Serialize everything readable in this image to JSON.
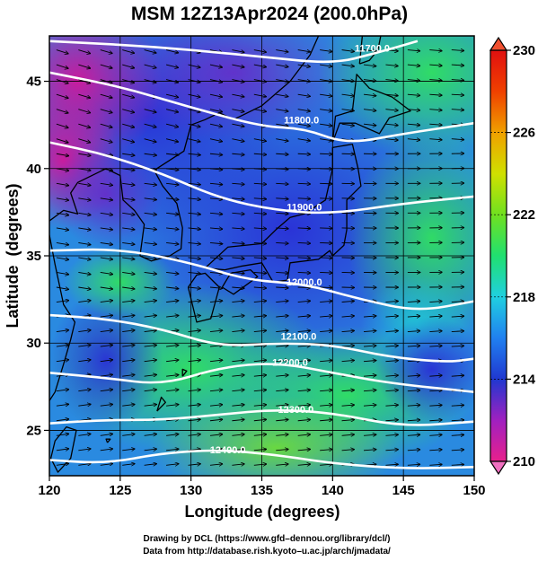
{
  "title": "MSM 12Z13Apr2024 (200.0hPa)",
  "footer": {
    "line1": "Drawing by DCL (https://www.gfd–dennou.org/library/dcl/)",
    "line2": "Data from http://database.rish.kyoto–u.ac.jp/arch/jmadata/"
  },
  "chart_data": {
    "type": "heatmap",
    "title": "MSM 12Z13Apr2024 (200.0hPa)",
    "xlabel": "Longitude (degrees)",
    "ylabel": "Latitude  (degrees)",
    "xlim": [
      120,
      150
    ],
    "ylim": [
      22.4,
      47.6
    ],
    "x_ticks": [
      120,
      125,
      130,
      135,
      140,
      145,
      150
    ],
    "y_ticks": [
      25,
      30,
      35,
      40,
      45
    ],
    "x_tick_labels": [
      "120",
      "125",
      "130",
      "135",
      "140",
      "145",
      "150"
    ],
    "y_tick_labels": [
      "25",
      "30",
      "35",
      "40",
      "45"
    ],
    "grid": true,
    "colorbar": {
      "min": 210,
      "max": 230,
      "ticks": [
        210,
        214,
        218,
        222,
        226,
        230
      ],
      "tick_labels": [
        "210",
        "214",
        "218",
        "222",
        "226",
        "230"
      ],
      "colors": [
        "#e8208c",
        "#a020c0",
        "#2038d0",
        "#2080f0",
        "#20d0e0",
        "#20e070",
        "#70e020",
        "#d0e000",
        "#f0a000",
        "#f04000",
        "#e01010"
      ]
    },
    "contours": [
      {
        "label": "11700.0",
        "label_pos": [
          142.8,
          46.9
        ],
        "points": [
          [
            120,
            47.3
          ],
          [
            125,
            47.1
          ],
          [
            130,
            46.8
          ],
          [
            135,
            46.4
          ],
          [
            140,
            46.0
          ],
          [
            143,
            46.6
          ],
          [
            146,
            47.3
          ]
        ]
      },
      {
        "label": "11800.0",
        "label_pos": [
          137.8,
          42.8
        ],
        "points": [
          [
            120,
            45.5
          ],
          [
            125,
            44.7
          ],
          [
            130,
            43.5
          ],
          [
            135,
            42.4
          ],
          [
            138,
            42.3
          ],
          [
            141,
            41.4
          ],
          [
            145,
            42.0
          ],
          [
            150,
            42.6
          ]
        ]
      },
      {
        "label": "11900.0",
        "label_pos": [
          138.0,
          37.8
        ],
        "points": [
          [
            120,
            41.5
          ],
          [
            124,
            40.8
          ],
          [
            128,
            39.7
          ],
          [
            132,
            38.3
          ],
          [
            136,
            37.6
          ],
          [
            140,
            37.4
          ],
          [
            145,
            38.0
          ],
          [
            150,
            38.4
          ]
        ]
      },
      {
        "label": "12000.0",
        "label_pos": [
          138.0,
          33.5
        ],
        "points": [
          [
            120,
            35.3
          ],
          [
            125,
            35.4
          ],
          [
            130,
            34.6
          ],
          [
            134,
            33.6
          ],
          [
            138,
            33.4
          ],
          [
            142,
            32.5
          ],
          [
            146,
            31.8
          ],
          [
            150,
            32.4
          ]
        ]
      },
      {
        "label": "12100.0",
        "label_pos": [
          137.6,
          30.4
        ],
        "points": [
          [
            120,
            31.6
          ],
          [
            124,
            31.4
          ],
          [
            128,
            30.8
          ],
          [
            132,
            29.8
          ],
          [
            136,
            30.0
          ],
          [
            140,
            29.9
          ],
          [
            144,
            29.2
          ],
          [
            148,
            28.9
          ],
          [
            150,
            29.1
          ]
        ]
      },
      {
        "label": "12200.0",
        "label_pos": [
          137.0,
          28.9
        ],
        "points": [
          [
            120,
            28.3
          ],
          [
            124,
            28.0
          ],
          [
            128,
            27.6
          ],
          [
            132,
            28.6
          ],
          [
            136,
            28.9
          ],
          [
            140,
            28.3
          ],
          [
            144,
            27.7
          ],
          [
            150,
            27.2
          ]
        ]
      },
      {
        "label": "12300.0",
        "label_pos": [
          137.4,
          26.2
        ],
        "points": [
          [
            120,
            25.4
          ],
          [
            124,
            25.6
          ],
          [
            128,
            25.6
          ],
          [
            132,
            25.9
          ],
          [
            136,
            26.2
          ],
          [
            140,
            26.0
          ],
          [
            145,
            25.2
          ],
          [
            150,
            25.5
          ]
        ]
      },
      {
        "label": "12400.0",
        "label_pos": [
          132.6,
          23.9
        ],
        "points": [
          [
            120,
            23.3
          ],
          [
            124,
            23.1
          ],
          [
            128,
            23.7
          ],
          [
            132,
            23.9
          ],
          [
            136,
            23.6
          ],
          [
            140,
            23.1
          ],
          [
            145,
            22.8
          ],
          [
            150,
            22.9
          ]
        ]
      }
    ]
  }
}
